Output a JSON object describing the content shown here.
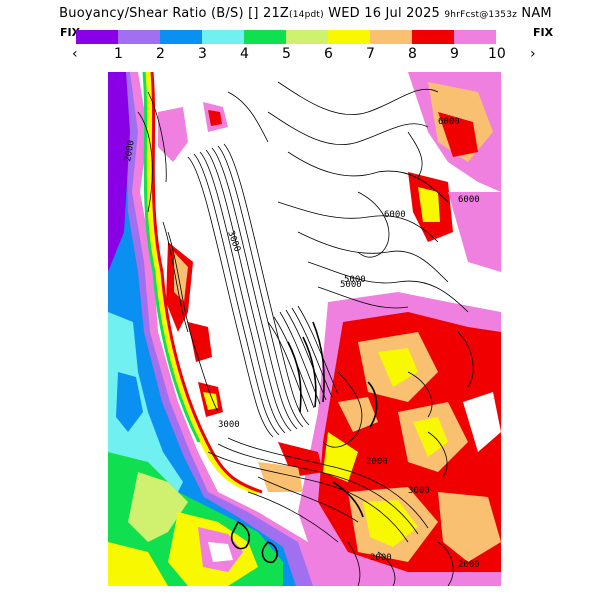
{
  "header": {
    "title_main": "Buoyancy/Shear Ratio (B/S)",
    "title_time": "21Z",
    "title_tz": "(14pdt)",
    "title_date": "WED 16 Jul 2025",
    "title_fcst": "9hrFcst@1353z",
    "title_model": "NAM"
  },
  "legend": {
    "fix_left": "FIX",
    "fix_right": "FIX",
    "prev_arrow": "‹",
    "next_arrow": "›",
    "colors": [
      "#8a00e6",
      "#a070f0",
      "#0a90f0",
      "#70f0f0",
      "#10e050",
      "#d0f070",
      "#f8f800",
      "#f8c070",
      "#f00000",
      "#f080e0"
    ],
    "labels": [
      "1",
      "2",
      "3",
      "4",
      "5",
      "6",
      "7",
      "8",
      "9",
      "10"
    ]
  },
  "map": {
    "contour_labels": [
      "2000",
      "3000",
      "3000",
      "5000",
      "6000",
      "5000",
      "6000",
      "6000",
      "2000",
      "3000",
      "2000",
      "2000"
    ]
  }
}
